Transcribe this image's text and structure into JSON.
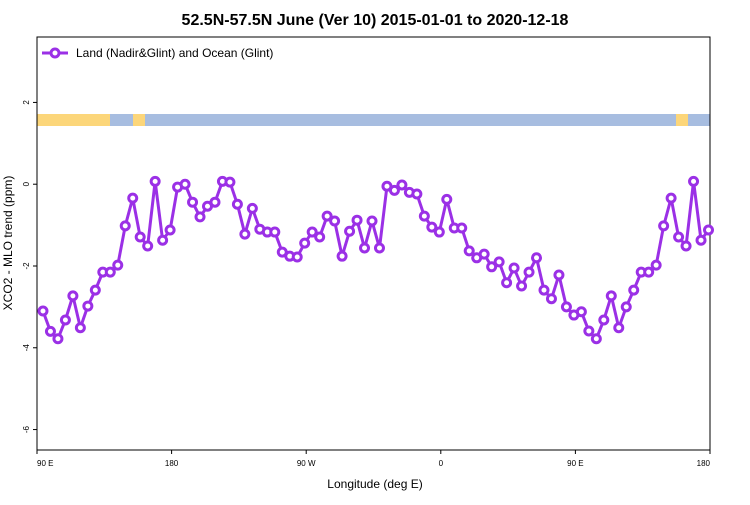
{
  "chart_data": {
    "type": "line",
    "title": "52.5N-57.5N June (Ver 10)   2015-01-01 to 2020-12-18",
    "xlabel": "Longitude (deg E)",
    "ylabel": "XCO2 - MLO trend (ppm)",
    "xlim": [
      90,
      540
    ],
    "ylim": [
      -6.5,
      3.6
    ],
    "xticks": [
      {
        "value": 90,
        "label": "90 E"
      },
      {
        "value": 180,
        "label": "180"
      },
      {
        "value": 270,
        "label": "90 W"
      },
      {
        "value": 360,
        "label": "0"
      },
      {
        "value": 450,
        "label": "90 E"
      },
      {
        "value": 540,
        "label": "180"
      }
    ],
    "yticks": [
      2,
      0,
      -2,
      -4,
      -6
    ],
    "legend": "top-left",
    "x": [
      94,
      99,
      104,
      109,
      114,
      119,
      124,
      129,
      134,
      139,
      144,
      149,
      154,
      159,
      164,
      169,
      174,
      179,
      184,
      189,
      194,
      199,
      204,
      209,
      214,
      219,
      224,
      229,
      234,
      239,
      244,
      249,
      254,
      259,
      264,
      269,
      274,
      279,
      284,
      289,
      294,
      299,
      304,
      309,
      314,
      319,
      324,
      329,
      334,
      339,
      344,
      349,
      354,
      359,
      364,
      369,
      374,
      379,
      384,
      389,
      394,
      399,
      404,
      409,
      414,
      419,
      424,
      429,
      434,
      439,
      444,
      449,
      454,
      459,
      464,
      469,
      474,
      479,
      484,
      489,
      494,
      499,
      504,
      509,
      514,
      519,
      524,
      529,
      534,
      539
    ],
    "series": [
      {
        "name": "Land (Nadir&Glint) and Ocean (Glint)",
        "color": "#9b30e6",
        "values": [
          -3.1,
          -3.6,
          -3.78,
          -3.32,
          -2.73,
          -3.51,
          -2.98,
          -2.59,
          -2.15,
          -2.15,
          -1.98,
          -1.02,
          -0.34,
          -1.29,
          -1.51,
          0.07,
          -1.37,
          -1.12,
          -0.07,
          0,
          -0.44,
          -0.8,
          -0.54,
          -0.44,
          0.07,
          0.05,
          -0.49,
          -1.22,
          -0.59,
          -1.1,
          -1.17,
          -1.17,
          -1.66,
          -1.76,
          -1.78,
          -1.44,
          -1.17,
          -1.29,
          -0.78,
          -0.9,
          -1.76,
          -1.15,
          -0.88,
          -1.56,
          -0.9,
          -1.56,
          -0.05,
          -0.15,
          -0.02,
          -0.2,
          -0.24,
          -0.78,
          -1.05,
          -1.17,
          -0.37,
          -1.07,
          -1.07,
          -1.63,
          -1.8,
          -1.71,
          -2.02,
          -1.9,
          -2.41,
          -2.05,
          -2.49,
          -2.15,
          -1.8,
          -2.59,
          -2.8,
          -2.22,
          -3.0,
          -3.2,
          -3.12,
          -3.59,
          -3.78,
          -3.32,
          -2.73,
          -3.51,
          -3.0,
          -2.59,
          -2.15,
          -2.15,
          -1.98,
          -1.02,
          -0.34,
          -1.29,
          -1.51,
          0.07,
          -1.37,
          -1.12
        ]
      }
    ]
  }
}
